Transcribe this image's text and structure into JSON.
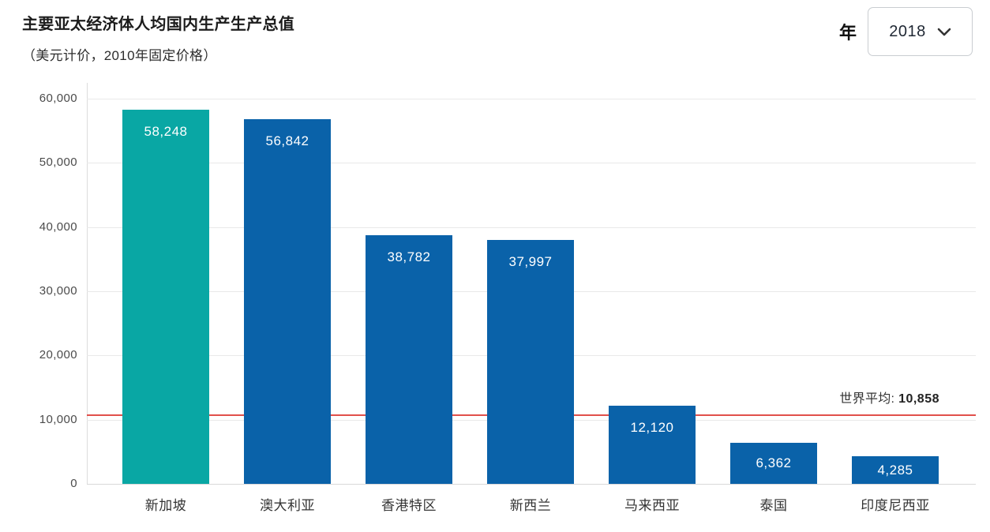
{
  "header": {
    "title": "主要亚太经济体人均国内生产生产总值",
    "subtitle": "（美元计价，2010年固定价格）"
  },
  "year_selector": {
    "label": "年",
    "value": "2018",
    "icon": "chevron-down"
  },
  "colors": {
    "highlight_teal": "#09A7A4",
    "bar_blue": "#0A62A9",
    "reference_red": "#E1504B",
    "gridline": "#e9e9e9",
    "axis_line": "#dcdcdc"
  },
  "chart_data": {
    "type": "bar",
    "title": "主要亚太经济体人均国内生产生产总值",
    "subtitle": "（美元计价，2010年固定价格）",
    "categories": [
      "新加坡",
      "澳大利亚",
      "香港特区",
      "新西兰",
      "马来西亚",
      "泰国",
      "印度尼西亚"
    ],
    "values": [
      58248,
      56842,
      38782,
      37997,
      12120,
      6362,
      4285
    ],
    "value_labels": [
      "58,248",
      "56,842",
      "38,782",
      "37,997",
      "12,120",
      "6,362",
      "4,285"
    ],
    "bar_colors": [
      "#09A7A4",
      "#0A62A9",
      "#0A62A9",
      "#0A62A9",
      "#0A62A9",
      "#0A62A9",
      "#0A62A9"
    ],
    "xlabel": "",
    "ylabel": "",
    "ylim": [
      0,
      60000
    ],
    "grid": true,
    "y_ticks": [
      0,
      10000,
      20000,
      30000,
      40000,
      50000,
      60000
    ],
    "y_tick_labels": [
      "0",
      "10,000",
      "20,000",
      "30,000",
      "40,000",
      "50,000",
      "60,000"
    ],
    "reference_line": {
      "label": "世界平均: ",
      "value": 10858,
      "value_label": "10,858",
      "color": "#E1504B"
    }
  }
}
